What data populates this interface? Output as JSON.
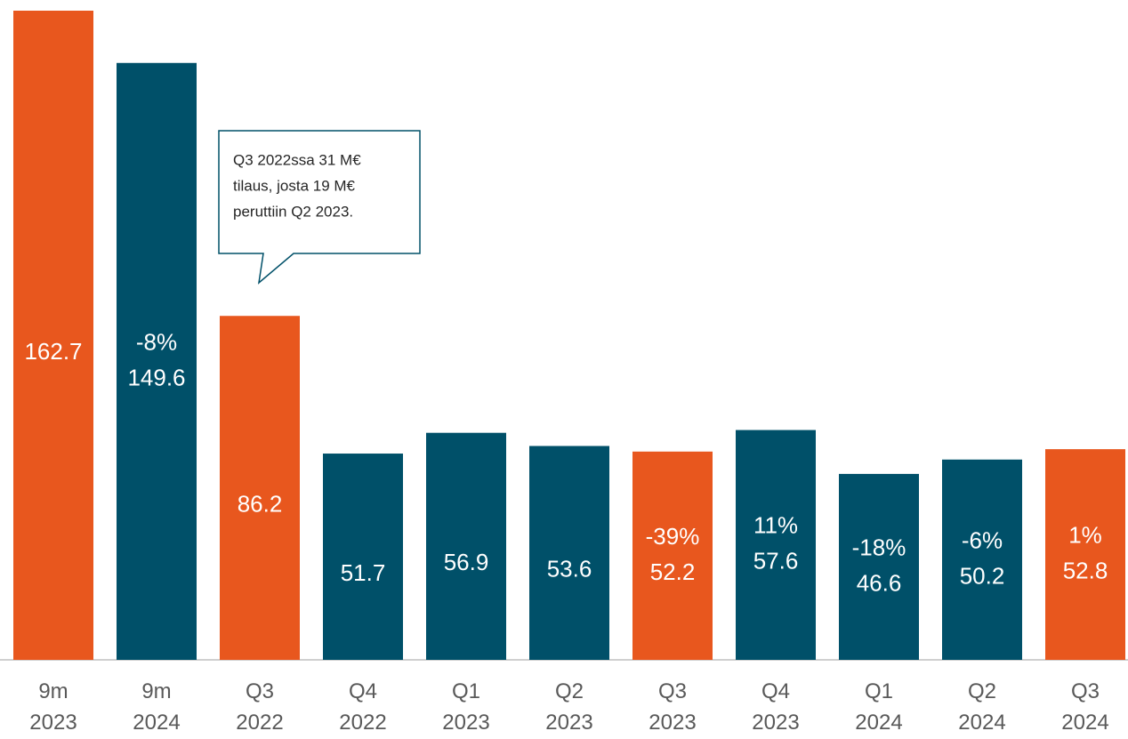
{
  "chart_data": {
    "type": "bar",
    "categories": [
      "9m\n2023",
      "9m\n2024",
      "Q3\n2022",
      "Q4\n2022",
      "Q1\n2023",
      "Q2\n2023",
      "Q3\n2023",
      "Q4\n2023",
      "Q1\n2024",
      "Q2\n2024",
      "Q3\n2024"
    ],
    "values": [
      162.7,
      149.6,
      86.2,
      51.7,
      56.9,
      53.6,
      52.2,
      57.6,
      46.6,
      50.2,
      52.8
    ],
    "colors": [
      "#e8571e",
      "#005069",
      "#e8571e",
      "#005069",
      "#005069",
      "#005069",
      "#e8571e",
      "#005069",
      "#005069",
      "#005069",
      "#e8571e"
    ],
    "changes": [
      null,
      "-8%",
      null,
      null,
      null,
      null,
      "-39%",
      "11%",
      "-18%",
      "-6%",
      "1%"
    ],
    "annotation": [
      "Q3 2022ssa 31 M€",
      "tilaus, josta 19 M€",
      "peruttiin Q2 2023."
    ],
    "ylim": [
      0,
      162.7
    ]
  }
}
